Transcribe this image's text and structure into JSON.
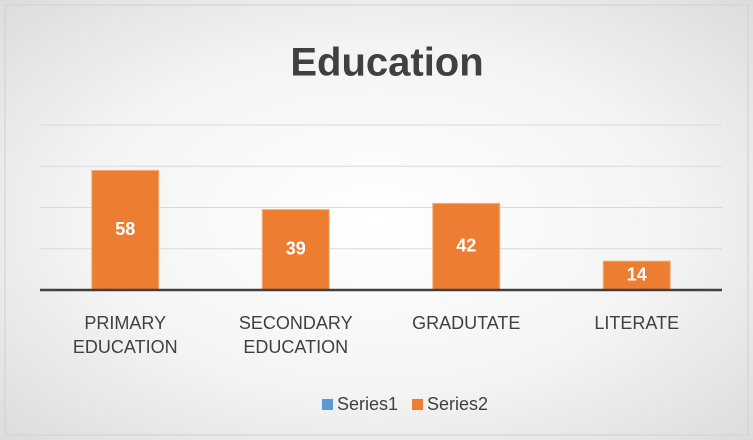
{
  "chart_data": {
    "type": "bar",
    "title": "Education",
    "categories": [
      "PRIMARY EDUCATION",
      "SECONDARY EDUCATION",
      "GRADUTATE",
      "LITERATE"
    ],
    "series": [
      {
        "name": "Series1",
        "color": "#5b9bd5",
        "values": [
          null,
          null,
          null,
          null
        ]
      },
      {
        "name": "Series2",
        "color": "#ed7d31",
        "values": [
          58,
          39,
          42,
          14
        ]
      }
    ],
    "ylim": [
      0,
      80
    ],
    "yticks": [
      0,
      20,
      40,
      60,
      80
    ],
    "grid": true,
    "legend": "bottom"
  }
}
